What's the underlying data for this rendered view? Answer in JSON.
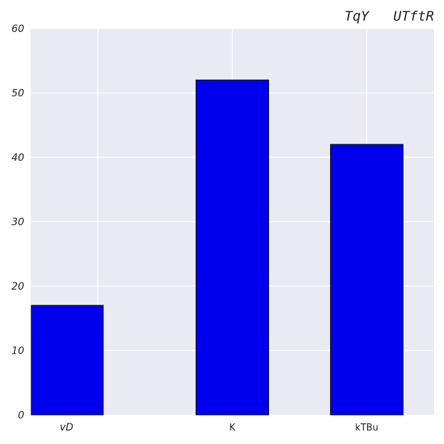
{
  "chart_data": {
    "type": "bar",
    "title": "TqY   UTftR",
    "xlabel": "",
    "ylabel": "",
    "categories": [
      "vD",
      "K",
      "kTBu"
    ],
    "values": [
      17,
      52,
      42
    ],
    "ylim": [
      0,
      60
    ],
    "yticks": [
      "0",
      "10",
      "20",
      "30",
      "40",
      "50",
      "60"
    ],
    "grid": true,
    "colors": {
      "bar_fill": "#0000ee",
      "bar_edge": "#000000",
      "plot_background": "#eaeaf2",
      "grid": "#ffffff"
    }
  }
}
